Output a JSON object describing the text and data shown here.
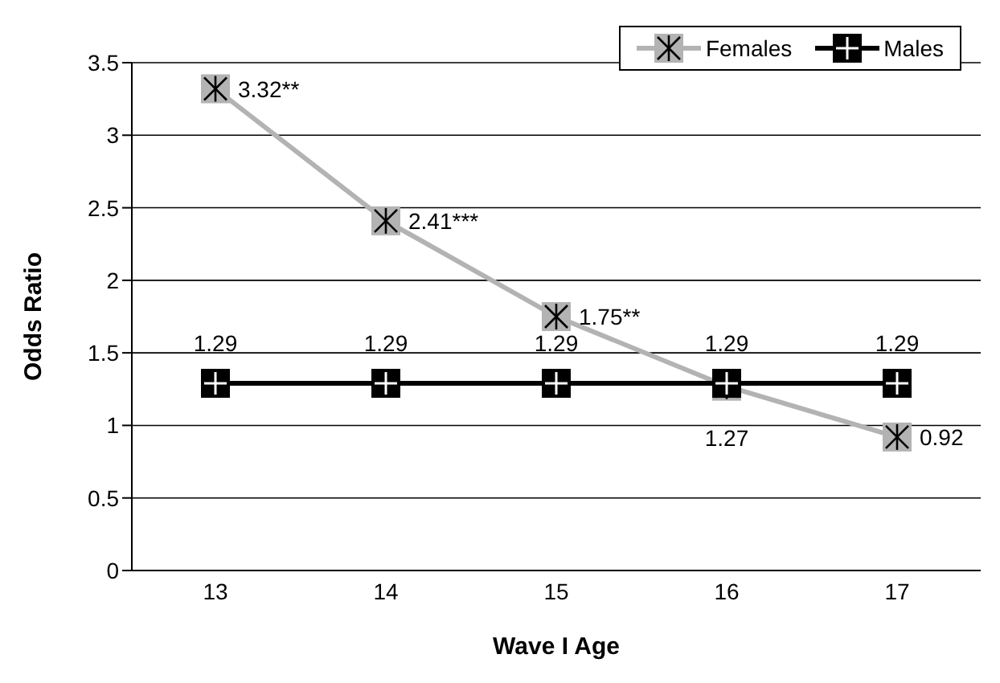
{
  "chart_data": {
    "type": "line",
    "xlabel": "Wave I Age",
    "ylabel": "Odds Ratio",
    "categories": [
      "13",
      "14",
      "15",
      "16",
      "17"
    ],
    "series": [
      {
        "name": "Females",
        "color": "#b3b3b3",
        "marker": "square",
        "values": [
          3.32,
          2.41,
          1.75,
          1.27,
          0.92
        ],
        "value_labels": [
          "3.32**",
          "2.41***",
          "1.75**",
          "1.27",
          "0.92"
        ]
      },
      {
        "name": "Males",
        "color": "#000000",
        "marker": "square",
        "values": [
          1.29,
          1.29,
          1.29,
          1.29,
          1.29
        ],
        "value_labels": [
          "1.29",
          "1.29",
          "1.29",
          "1.29",
          "1.29"
        ]
      }
    ],
    "ylim": [
      0,
      3.5
    ],
    "yticks": [
      0,
      0.5,
      1,
      1.5,
      2,
      2.5,
      3,
      3.5
    ],
    "grid": "y",
    "legend": "top right",
    "line_style": "solid"
  }
}
